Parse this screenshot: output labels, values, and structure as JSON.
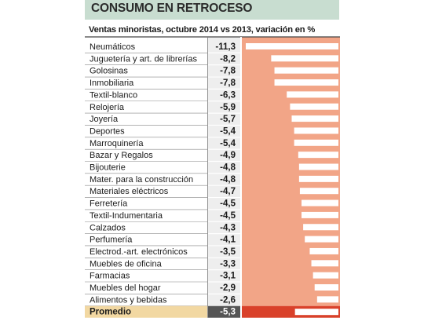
{
  "title": "CONSUMO EN RETROCESO",
  "subtitle": "Ventas minoristas, octubre 2014 vs 2013, variación en %",
  "colors": {
    "bar": "#f2a587",
    "bar_average": "#d9412a",
    "value_cell": "#eeeeee",
    "value_cell_average": "#555555",
    "label_average_bg": "#f2d8a2",
    "title_bg": "#c8ddd0",
    "rule": "#444444"
  },
  "chart_data": {
    "type": "bar",
    "orientation": "horizontal",
    "title": "CONSUMO EN RETROCESO",
    "subtitle": "Ventas minoristas, octubre 2014 vs 2013, variación en %",
    "categories": [
      "Neumáticos",
      "Juguetería y art. de librerías",
      "Golosinas",
      "Inmobiliaria",
      "Textil-blanco",
      "Relojería",
      "Joyería",
      "Deportes",
      "Marroquinería",
      "Bazar y Regalos",
      "Bijouterie",
      "Mater. para la construcción",
      "Materiales eléctricos",
      "Ferretería",
      "Textil-Indumentaria",
      "Calzados",
      "Perfumería",
      "Electrod.-art. electrónicos",
      "Muebles de oficina",
      "Farmacias",
      "Muebles del hogar",
      "Alimentos y bebidas"
    ],
    "values": [
      -11.3,
      -8.2,
      -7.8,
      -7.8,
      -6.3,
      -5.9,
      -5.7,
      -5.4,
      -5.4,
      -4.9,
      -4.8,
      -4.8,
      -4.7,
      -4.5,
      -4.5,
      -4.3,
      -4.1,
      -3.5,
      -3.3,
      -3.1,
      -2.9,
      -2.6
    ],
    "labels": [
      "-11,3",
      "-8,2",
      "-7,8",
      "-7,8",
      "-6,3",
      "-5,9",
      "-5,7",
      "-5,4",
      "-5,4",
      "-4,9",
      "-4,8",
      "-4,8",
      "-4,7",
      "-4,5",
      "-4,5",
      "-4,3",
      "-4,1",
      "-3,5",
      "-3,3",
      "-3,1",
      "-2,9",
      "-2,6"
    ],
    "average": {
      "label": "Promedio",
      "value": -5.3,
      "display": "-5,3"
    },
    "xlim": [
      -11.3,
      0
    ]
  }
}
